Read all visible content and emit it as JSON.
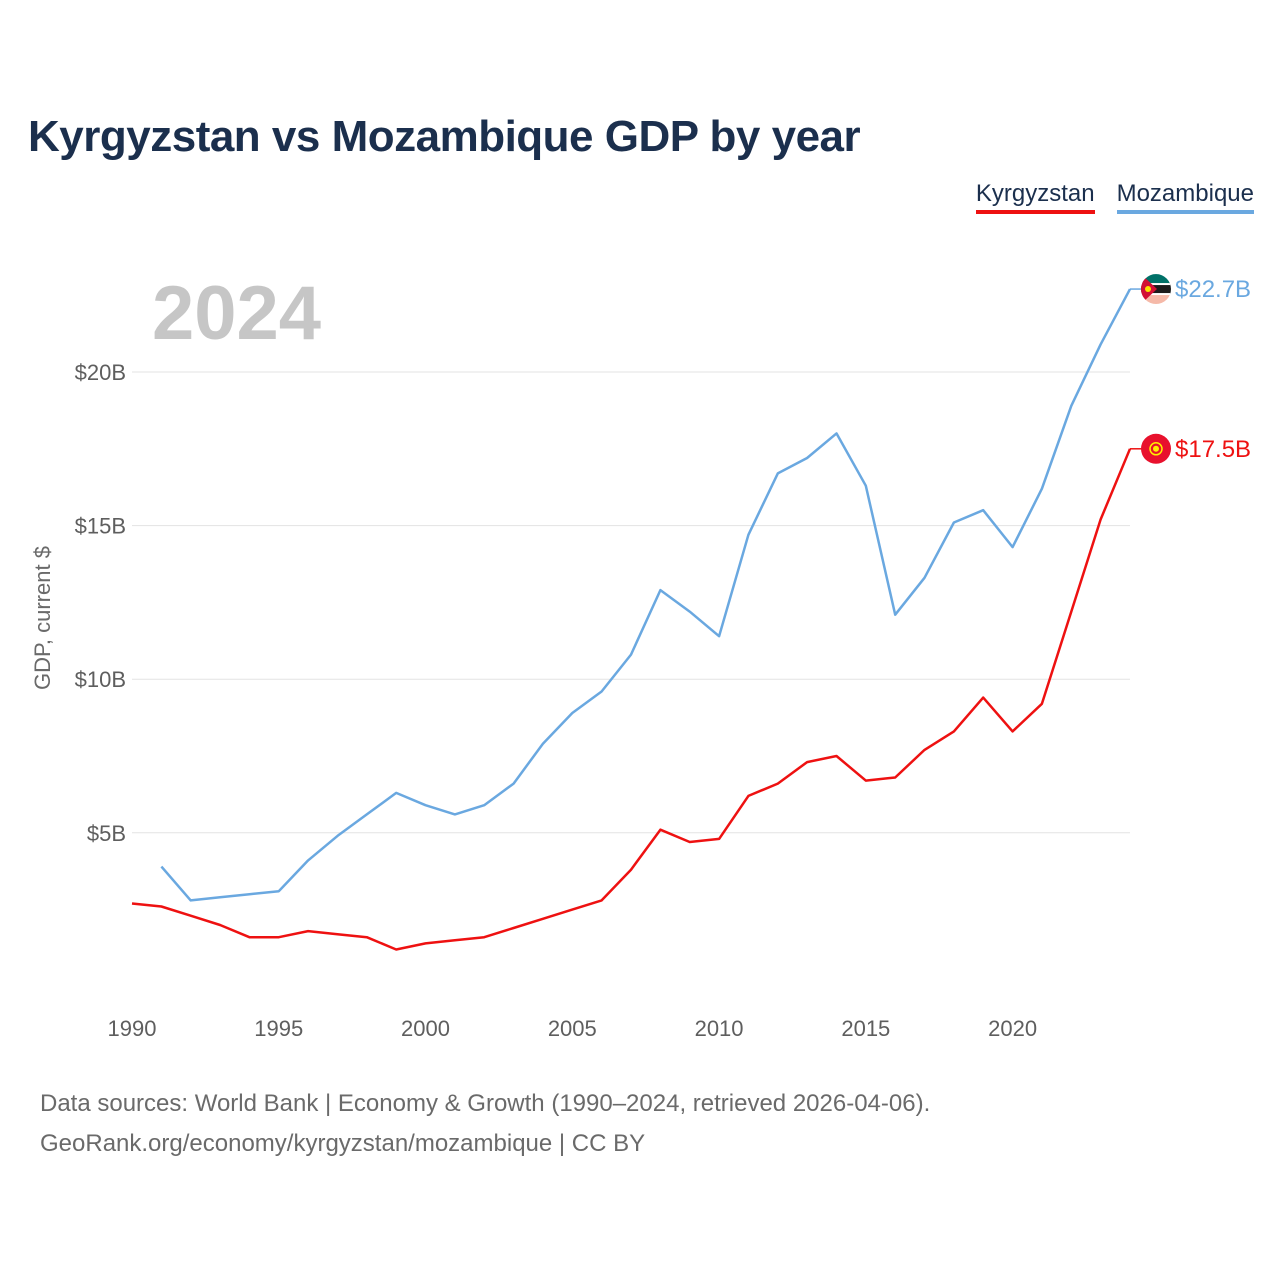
{
  "chart_data": {
    "type": "line",
    "title": "Kyrgyzstan vs Mozambique GDP by year",
    "ylabel": "GDP, current $",
    "xlabel": "",
    "highlight_year": "2024",
    "xlim": [
      1990,
      2024
    ],
    "ylim": [
      0,
      23
    ],
    "x_ticks": [
      1990,
      1995,
      2000,
      2005,
      2010,
      2015,
      2020
    ],
    "x_tick_labels": [
      "1990",
      "1995",
      "2000",
      "2005",
      "2010",
      "2015",
      "2020"
    ],
    "y_ticks": [
      5,
      10,
      15,
      20
    ],
    "y_tick_labels": [
      "$5B",
      "$10B",
      "$15B",
      "$20B"
    ],
    "unit": "billion USD",
    "series": [
      {
        "name": "Kyrgyzstan",
        "color": "#ee1111",
        "end_label": "$17.5B",
        "end_icon": "kyrgyzstan-flag-icon",
        "x": [
          1990,
          1991,
          1992,
          1993,
          1994,
          1995,
          1996,
          1997,
          1998,
          1999,
          2000,
          2001,
          2002,
          2003,
          2004,
          2005,
          2006,
          2007,
          2008,
          2009,
          2010,
          2011,
          2012,
          2013,
          2014,
          2015,
          2016,
          2017,
          2018,
          2019,
          2020,
          2021,
          2022,
          2023,
          2024
        ],
        "values": [
          2.7,
          2.6,
          2.3,
          2.0,
          1.6,
          1.6,
          1.8,
          1.7,
          1.6,
          1.2,
          1.4,
          1.5,
          1.6,
          1.9,
          2.2,
          2.5,
          2.8,
          3.8,
          5.1,
          4.7,
          4.8,
          6.2,
          6.6,
          7.3,
          7.5,
          6.7,
          6.8,
          7.7,
          8.3,
          9.4,
          8.3,
          9.2,
          12.2,
          15.2,
          17.5
        ]
      },
      {
        "name": "Mozambique",
        "color": "#6aa8e0",
        "end_label": "$22.7B",
        "end_icon": "mozambique-flag-icon",
        "x": [
          1991,
          1992,
          1993,
          1994,
          1995,
          1996,
          1997,
          1998,
          1999,
          2000,
          2001,
          2002,
          2003,
          2004,
          2005,
          2006,
          2007,
          2008,
          2009,
          2010,
          2011,
          2012,
          2013,
          2014,
          2015,
          2016,
          2017,
          2018,
          2019,
          2020,
          2021,
          2022,
          2023,
          2024
        ],
        "values": [
          3.9,
          2.8,
          2.9,
          3.0,
          3.1,
          4.1,
          4.9,
          5.6,
          6.3,
          5.9,
          5.6,
          5.9,
          6.6,
          7.9,
          8.9,
          9.6,
          10.8,
          12.9,
          12.2,
          11.4,
          14.7,
          16.7,
          17.2,
          18.0,
          16.3,
          12.1,
          13.3,
          15.1,
          15.5,
          14.3,
          16.2,
          18.9,
          20.9,
          22.7
        ]
      }
    ]
  },
  "footer": {
    "source": "Data sources: World Bank | Economy & Growth (1990–2024, retrieved 2026-04-06).",
    "url": "GeoRank.org/economy/kyrgyzstan/mozambique | CC BY"
  }
}
